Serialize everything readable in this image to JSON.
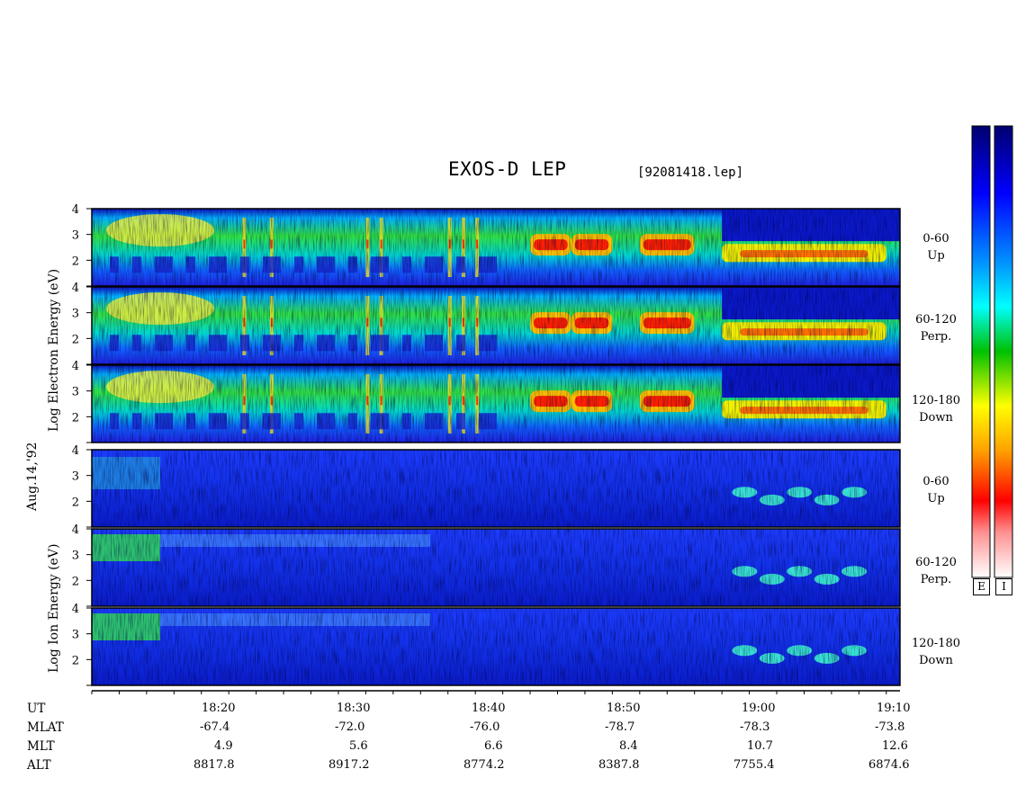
{
  "chart_data": {
    "type": "heatmap",
    "title": "EXOS-D LEP",
    "subtitle": "[92081418.lep]",
    "date_label": "Aug.14,'92",
    "groups": [
      {
        "name": "Electron",
        "ylabel": "Log Electron Energy (eV)",
        "panels": [
          {
            "pitch_range": "0-60",
            "direction": "Up"
          },
          {
            "pitch_range": "60-120",
            "direction": "Perp."
          },
          {
            "pitch_range": "120-180",
            "direction": "Down"
          }
        ]
      },
      {
        "name": "Ion",
        "ylabel": "Log Ion Energy (eV)",
        "panels": [
          {
            "pitch_range": "0-60",
            "direction": "Up"
          },
          {
            "pitch_range": "60-120",
            "direction": "Perp."
          },
          {
            "pitch_range": "120-180",
            "direction": "Down"
          }
        ]
      }
    ],
    "ylim": [
      1,
      4
    ],
    "y_ticks": [
      "2",
      "3",
      "4"
    ],
    "xlim": [
      "18:11",
      "19:10"
    ],
    "x_ticks": [
      "18:20",
      "18:30",
      "18:40",
      "18:50",
      "19:00",
      "19:10"
    ],
    "orbit_table": {
      "row_labels": [
        "UT",
        "MLAT",
        "MLT",
        "ALT"
      ],
      "MLAT": [
        "-67.4",
        "-72.0",
        "-76.0",
        "-78.7",
        "-78.3",
        "-73.8"
      ],
      "MLT": [
        "4.9",
        "5.6",
        "6.6",
        "8.4",
        "10.7",
        "12.6"
      ],
      "ALT": [
        "8817.8",
        "8917.2",
        "8774.2",
        "8387.8",
        "7755.4",
        "6874.6"
      ]
    },
    "colorbars": [
      {
        "label": "E"
      },
      {
        "label": "I"
      }
    ],
    "electron_features": {
      "red_bands_log_eV": 2.6,
      "intense_intervals": [
        [
          "18:43",
          "18:46"
        ],
        [
          "18:46",
          "18:49"
        ],
        [
          "18:51",
          "18:55"
        ]
      ],
      "late_band_interval": [
        "18:57",
        "19:09"
      ]
    },
    "ion_features": {
      "early_high_energy_until": "18:16",
      "patches_interval": [
        "18:58",
        "19:08"
      ]
    }
  }
}
